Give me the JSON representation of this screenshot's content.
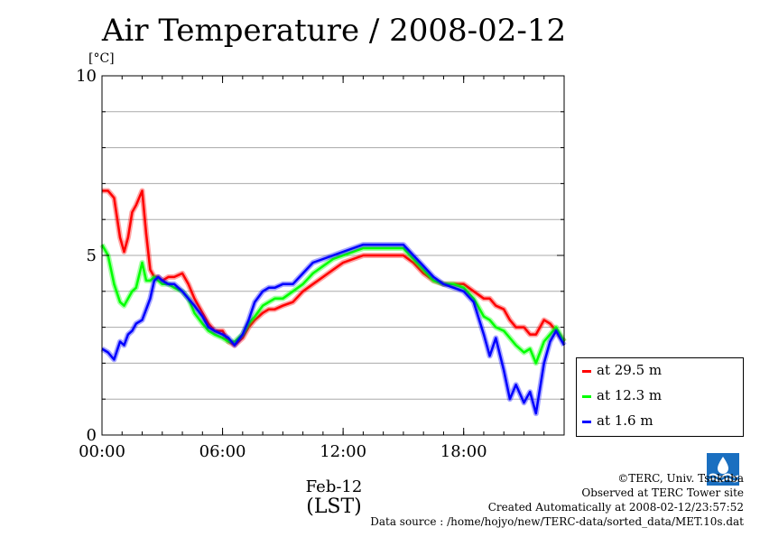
{
  "chart_data": {
    "type": "line",
    "title": "Air Temperature / 2008-02-12",
    "ylabel": "[°C]",
    "ylim": [
      0,
      10
    ],
    "yticks": [
      "0",
      "5",
      "10"
    ],
    "xlim_hours": [
      0,
      23.0
    ],
    "xticks": [
      "00:00",
      "06:00",
      "12:00",
      "18:00"
    ],
    "xlabel_date": "Feb-12",
    "xlabel_zone": "(LST)",
    "grid": true,
    "legend_position": "right-bottom",
    "series": [
      {
        "name": "at 29.5 m",
        "color": "#ff0000",
        "x": [
          0,
          0.3,
          0.6,
          0.9,
          1.1,
          1.3,
          1.5,
          1.7,
          2.0,
          2.2,
          2.4,
          2.6,
          2.8,
          3.0,
          3.3,
          3.6,
          4.0,
          4.3,
          4.6,
          5.0,
          5.3,
          5.6,
          6.0,
          6.3,
          6.6,
          7.0,
          7.3,
          7.6,
          8.0,
          8.3,
          8.6,
          9.0,
          9.5,
          10.0,
          10.5,
          11.0,
          11.5,
          12.0,
          12.5,
          13.0,
          13.5,
          14.0,
          14.5,
          15.0,
          15.5,
          16.0,
          16.5,
          17.0,
          17.5,
          18.0,
          18.5,
          19.0,
          19.3,
          19.6,
          20.0,
          20.3,
          20.6,
          21.0,
          21.3,
          21.6,
          22.0,
          22.3,
          22.6,
          23.0
        ],
        "values": [
          6.8,
          6.8,
          6.6,
          5.5,
          5.1,
          5.5,
          6.2,
          6.4,
          6.8,
          5.6,
          4.6,
          4.4,
          4.4,
          4.3,
          4.4,
          4.4,
          4.5,
          4.2,
          3.8,
          3.4,
          3.1,
          2.9,
          2.9,
          2.6,
          2.5,
          2.7,
          3.0,
          3.2,
          3.4,
          3.5,
          3.5,
          3.6,
          3.7,
          4.0,
          4.2,
          4.4,
          4.6,
          4.8,
          4.9,
          5.0,
          5.0,
          5.0,
          5.0,
          5.0,
          4.8,
          4.5,
          4.3,
          4.2,
          4.2,
          4.2,
          4.0,
          3.8,
          3.8,
          3.6,
          3.5,
          3.2,
          3.0,
          3.0,
          2.8,
          2.8,
          3.2,
          3.1,
          2.9,
          2.6
        ]
      },
      {
        "name": "at 12.3 m",
        "color": "#00ff00",
        "x": [
          0,
          0.3,
          0.6,
          0.9,
          1.1,
          1.3,
          1.5,
          1.7,
          2.0,
          2.2,
          2.4,
          2.6,
          2.8,
          3.0,
          3.3,
          3.6,
          4.0,
          4.3,
          4.6,
          5.0,
          5.3,
          5.6,
          6.0,
          6.3,
          6.6,
          7.0,
          7.3,
          7.6,
          8.0,
          8.3,
          8.6,
          9.0,
          9.5,
          10.0,
          10.5,
          11.0,
          11.5,
          12.0,
          12.5,
          13.0,
          13.5,
          14.0,
          14.5,
          15.0,
          15.5,
          16.0,
          16.5,
          17.0,
          17.5,
          18.0,
          18.5,
          19.0,
          19.3,
          19.6,
          20.0,
          20.3,
          20.6,
          21.0,
          21.3,
          21.6,
          22.0,
          22.3,
          22.6,
          23.0
        ],
        "values": [
          5.3,
          5.0,
          4.2,
          3.7,
          3.6,
          3.8,
          4.0,
          4.1,
          4.8,
          4.3,
          4.3,
          4.4,
          4.3,
          4.2,
          4.2,
          4.1,
          4.0,
          3.8,
          3.4,
          3.1,
          2.9,
          2.8,
          2.7,
          2.6,
          2.6,
          2.8,
          3.1,
          3.3,
          3.6,
          3.7,
          3.8,
          3.8,
          4.0,
          4.2,
          4.5,
          4.7,
          4.9,
          5.0,
          5.1,
          5.2,
          5.2,
          5.2,
          5.2,
          5.2,
          4.9,
          4.6,
          4.3,
          4.2,
          4.2,
          4.1,
          3.8,
          3.3,
          3.2,
          3.0,
          2.9,
          2.7,
          2.5,
          2.3,
          2.4,
          2.0,
          2.6,
          2.8,
          3.0,
          2.6
        ]
      },
      {
        "name": "at 1.6 m",
        "color": "#0000ff",
        "x": [
          0,
          0.3,
          0.6,
          0.9,
          1.1,
          1.3,
          1.5,
          1.7,
          2.0,
          2.2,
          2.4,
          2.6,
          2.8,
          3.0,
          3.3,
          3.6,
          4.0,
          4.3,
          4.6,
          5.0,
          5.3,
          5.6,
          6.0,
          6.3,
          6.6,
          7.0,
          7.3,
          7.6,
          8.0,
          8.3,
          8.6,
          9.0,
          9.5,
          10.0,
          10.5,
          11.0,
          11.5,
          12.0,
          12.5,
          13.0,
          13.5,
          14.0,
          14.5,
          15.0,
          15.5,
          16.0,
          16.5,
          17.0,
          17.5,
          18.0,
          18.5,
          19.0,
          19.3,
          19.6,
          20.0,
          20.3,
          20.6,
          21.0,
          21.3,
          21.6,
          22.0,
          22.3,
          22.6,
          23.0
        ],
        "values": [
          2.4,
          2.3,
          2.1,
          2.6,
          2.5,
          2.8,
          2.9,
          3.1,
          3.2,
          3.5,
          3.8,
          4.3,
          4.4,
          4.3,
          4.2,
          4.2,
          4.0,
          3.8,
          3.6,
          3.3,
          3.0,
          2.9,
          2.8,
          2.7,
          2.5,
          2.8,
          3.2,
          3.7,
          4.0,
          4.1,
          4.1,
          4.2,
          4.2,
          4.5,
          4.8,
          4.9,
          5.0,
          5.1,
          5.2,
          5.3,
          5.3,
          5.3,
          5.3,
          5.3,
          5.0,
          4.7,
          4.4,
          4.2,
          4.1,
          4.0,
          3.7,
          2.8,
          2.2,
          2.7,
          1.8,
          1.0,
          1.4,
          0.9,
          1.2,
          0.6,
          2.0,
          2.6,
          2.9,
          2.5
        ]
      }
    ]
  },
  "footer": {
    "copyright": "©TERC, Univ. Tsukuba",
    "site": "Observed at TERC Tower site",
    "created": "Created Automatically at 2008-02-12/23:57:52",
    "source": "Data source : /home/hojyo/new/TERC-data/sorted_data/MET.10s.dat"
  }
}
